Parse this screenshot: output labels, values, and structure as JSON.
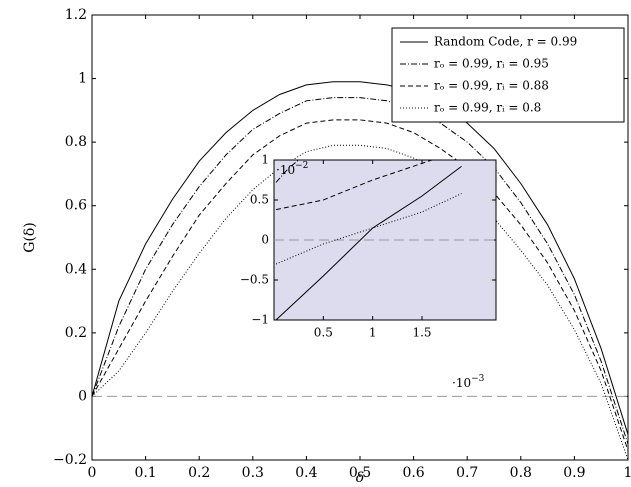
{
  "chart_data": [
    {
      "type": "line",
      "x_label": "δ",
      "y_label": "G(δ)",
      "x": [
        0,
        0.05,
        0.1,
        0.15,
        0.2,
        0.25,
        0.3,
        0.35,
        0.4,
        0.45,
        0.5,
        0.55,
        0.6,
        0.65,
        0.7,
        0.75,
        0.8,
        0.85,
        0.9,
        0.95,
        1
      ],
      "xlim": [
        0,
        1
      ],
      "ylim": [
        -0.2,
        1.2
      ],
      "xticks": [
        0,
        0.1,
        0.2,
        0.3,
        0.4,
        0.5,
        0.6,
        0.7,
        0.8,
        0.9,
        1
      ],
      "yticks": [
        {
          "value": -0.2,
          "label": "−0.2"
        },
        0,
        0.2,
        0.4,
        0.6,
        0.8,
        1,
        1.2
      ],
      "reference_line": 0,
      "legend": "upper right",
      "series": [
        {
          "name": "Random Code, r = 0.99",
          "color": "#000000",
          "dash": "solid",
          "values": [
            0,
            0.3,
            0.48,
            0.62,
            0.74,
            0.83,
            0.9,
            0.95,
            0.98,
            0.99,
            0.99,
            0.98,
            0.96,
            0.92,
            0.86,
            0.78,
            0.67,
            0.54,
            0.37,
            0.15,
            -0.12
          ]
        },
        {
          "name": "rₒ = 0.99, rᵢ = 0.95",
          "color": "#000000",
          "dash": "dash-dot",
          "values": [
            0,
            0.22,
            0.4,
            0.54,
            0.66,
            0.76,
            0.84,
            0.89,
            0.93,
            0.94,
            0.94,
            0.93,
            0.9,
            0.86,
            0.8,
            0.72,
            0.61,
            0.48,
            0.32,
            0.11,
            -0.15
          ]
        },
        {
          "name": "rₒ = 0.99, rᵢ = 0.88",
          "color": "#000000",
          "dash": "dashed",
          "values": [
            0,
            0.15,
            0.3,
            0.44,
            0.57,
            0.67,
            0.76,
            0.82,
            0.86,
            0.87,
            0.87,
            0.86,
            0.83,
            0.78,
            0.72,
            0.64,
            0.54,
            0.42,
            0.27,
            0.08,
            -0.17
          ]
        },
        {
          "name": "rₒ = 0.99, rᵢ = 0.8",
          "color": "#000000",
          "dash": "dotted",
          "values": [
            0,
            0.08,
            0.2,
            0.33,
            0.45,
            0.56,
            0.65,
            0.72,
            0.77,
            0.79,
            0.79,
            0.78,
            0.75,
            0.7,
            0.64,
            0.56,
            0.46,
            0.35,
            0.21,
            0.04,
            -0.2
          ]
        }
      ]
    },
    {
      "type": "line",
      "background": "#dddcee",
      "x_scale_base": "·10",
      "x_scale_exp": "−3",
      "y_scale_base": "·10",
      "y_scale_exp": "−2",
      "xlim": [
        0,
        2.25
      ],
      "ylim": [
        -1,
        1
      ],
      "xticks": [
        0.5,
        1,
        1.5
      ],
      "yticks": [
        {
          "value": -1,
          "label": "−1"
        },
        {
          "value": -0.5,
          "label": "−0.5"
        },
        0,
        0.5,
        1
      ],
      "reference_line": 0,
      "series": [
        {
          "color": "#000000",
          "dash": "solid",
          "x": [
            0.02,
            0.5,
            1,
            1.5,
            1.9
          ],
          "values": [
            -1,
            -0.45,
            0.15,
            0.55,
            0.92
          ]
        },
        {
          "color": "#000000",
          "dash": "dash-dot",
          "x": [
            0.02,
            0.15,
            0.25
          ],
          "values": [
            0.72,
            0.9,
            1
          ]
        },
        {
          "color": "#000000",
          "dash": "dashed",
          "x": [
            0.02,
            0.5,
            1,
            1.6
          ],
          "values": [
            0.38,
            0.5,
            0.75,
            1
          ]
        },
        {
          "color": "#000000",
          "dash": "dotted",
          "x": [
            0.02,
            0.5,
            1,
            1.5,
            1.9
          ],
          "values": [
            -0.3,
            -0.05,
            0.15,
            0.35,
            0.58
          ]
        }
      ]
    }
  ]
}
